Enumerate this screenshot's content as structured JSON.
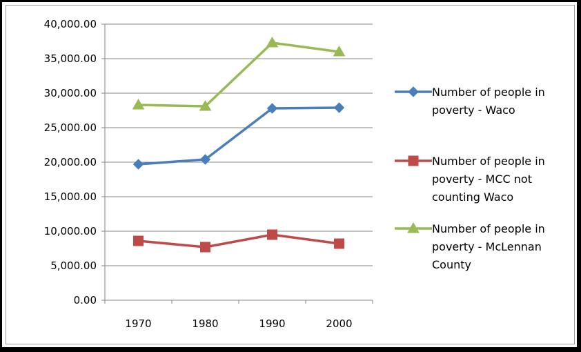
{
  "chart_data": {
    "type": "line",
    "categories": [
      "1970",
      "1980",
      "1990",
      "2000"
    ],
    "ylim": [
      0,
      40000
    ],
    "yticks": [
      "0.00",
      "5,000.00",
      "10,000.00",
      "15,000.00",
      "20,000.00",
      "25,000.00",
      "30,000.00",
      "35,000.00",
      "40,000.00"
    ],
    "grid": true,
    "legend_position": "right",
    "series": [
      {
        "name": "Number of people in poverty - Waco",
        "legend_lines": [
          "Number of people in",
          "poverty - Waco"
        ],
        "values": [
          19700,
          20400,
          27800,
          27900
        ],
        "color": "#4a7ebb",
        "marker": "diamond"
      },
      {
        "name": "Number of people in poverty - MCC not counting Waco",
        "legend_lines": [
          "Number of people in",
          "poverty - MCC not",
          "counting Waco"
        ],
        "values": [
          8600,
          7700,
          9500,
          8200
        ],
        "color": "#be4b48",
        "marker": "square"
      },
      {
        "name": "Number of people in poverty - McLennan County",
        "legend_lines": [
          "Number of people in",
          "poverty - McLennan",
          "County"
        ],
        "values": [
          28300,
          28100,
          37300,
          36000
        ],
        "color": "#98b954",
        "marker": "triangle"
      }
    ]
  }
}
